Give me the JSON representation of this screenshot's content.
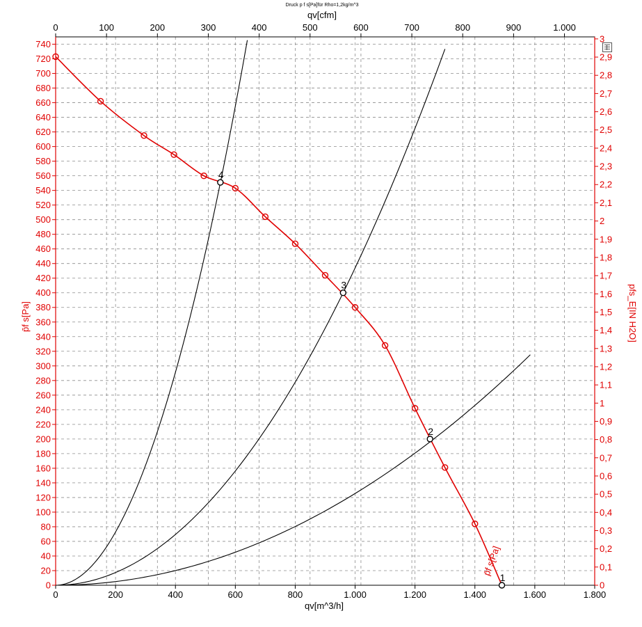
{
  "chart_data": {
    "type": "line",
    "title": "Druck p f s[Pa]für Rho=1,2kg/m^3",
    "xlabel": "qv[m^3/h]",
    "x2label": "qv[cfm]",
    "ylabel": "p̄f s[Pa]",
    "y2label": "pfs_E[IN H2O]",
    "xlim": [
      0,
      1800
    ],
    "ylim": [
      0,
      750
    ],
    "x2lim": [
      0,
      1059.4
    ],
    "y2lim": [
      0,
      3.011
    ],
    "x_ticks": [
      "0",
      "200",
      "400",
      "600",
      "800",
      "1.000",
      "1.200",
      "1.400",
      "1.600",
      "1.800"
    ],
    "x2_ticks": [
      "0",
      "100",
      "200",
      "300",
      "400",
      "500",
      "600",
      "700",
      "800",
      "900",
      "1.000"
    ],
    "y_ticks": [
      "0",
      "20",
      "40",
      "60",
      "80",
      "100",
      "120",
      "140",
      "160",
      "180",
      "200",
      "220",
      "240",
      "260",
      "280",
      "300",
      "320",
      "340",
      "360",
      "380",
      "400",
      "420",
      "440",
      "460",
      "480",
      "500",
      "520",
      "540",
      "560",
      "580",
      "600",
      "620",
      "640",
      "660",
      "680",
      "700",
      "720",
      "740"
    ],
    "y2_ticks": [
      "0",
      "0,1",
      "0,2",
      "0,3",
      "0,4",
      "0,5",
      "0,6",
      "0,7",
      "0,8",
      "0,9",
      "1",
      "1,1",
      "1,2",
      "1,3",
      "1,4",
      "1,5",
      "1,6",
      "1,7",
      "1,8",
      "1,9",
      "2",
      "2,1",
      "2,2",
      "2,3",
      "2,4",
      "2,5",
      "2,6",
      "2,7",
      "2,8",
      "2,9",
      "3"
    ],
    "grid": true,
    "series": [
      {
        "name": "p̄f s[Pa]",
        "color": "#e00000",
        "x": [
          0,
          150,
          295,
          395,
          495,
          600,
          700,
          800,
          900,
          1000,
          1100,
          1200,
          1300,
          1400,
          1490
        ],
        "y": [
          723,
          662,
          615,
          589,
          560,
          543,
          504,
          467,
          424,
          380,
          328,
          242,
          161,
          84,
          0
        ],
        "markers": [
          true,
          true,
          true,
          true,
          true,
          true,
          true,
          true,
          true,
          true,
          true,
          true,
          true,
          true,
          true
        ]
      }
    ],
    "resistance_curves": [
      {
        "color": "#000000",
        "k": 0.0001255,
        "x_end": 1585
      },
      {
        "color": "#000000",
        "k": 0.000434,
        "x_end": 1300
      },
      {
        "color": "#000000",
        "k": 0.00182,
        "x_end": 640
      }
    ],
    "operating_points": [
      {
        "label": "1",
        "x": 1490,
        "y": 0
      },
      {
        "label": "2",
        "x": 1250,
        "y": 200
      },
      {
        "label": "3",
        "x": 960,
        "y": 400
      },
      {
        "label": "4",
        "x": 550,
        "y": 551
      }
    ],
    "curve_label": "p̄f s[Pa]"
  },
  "toolbar": {
    "export_icon": "export-icon"
  }
}
